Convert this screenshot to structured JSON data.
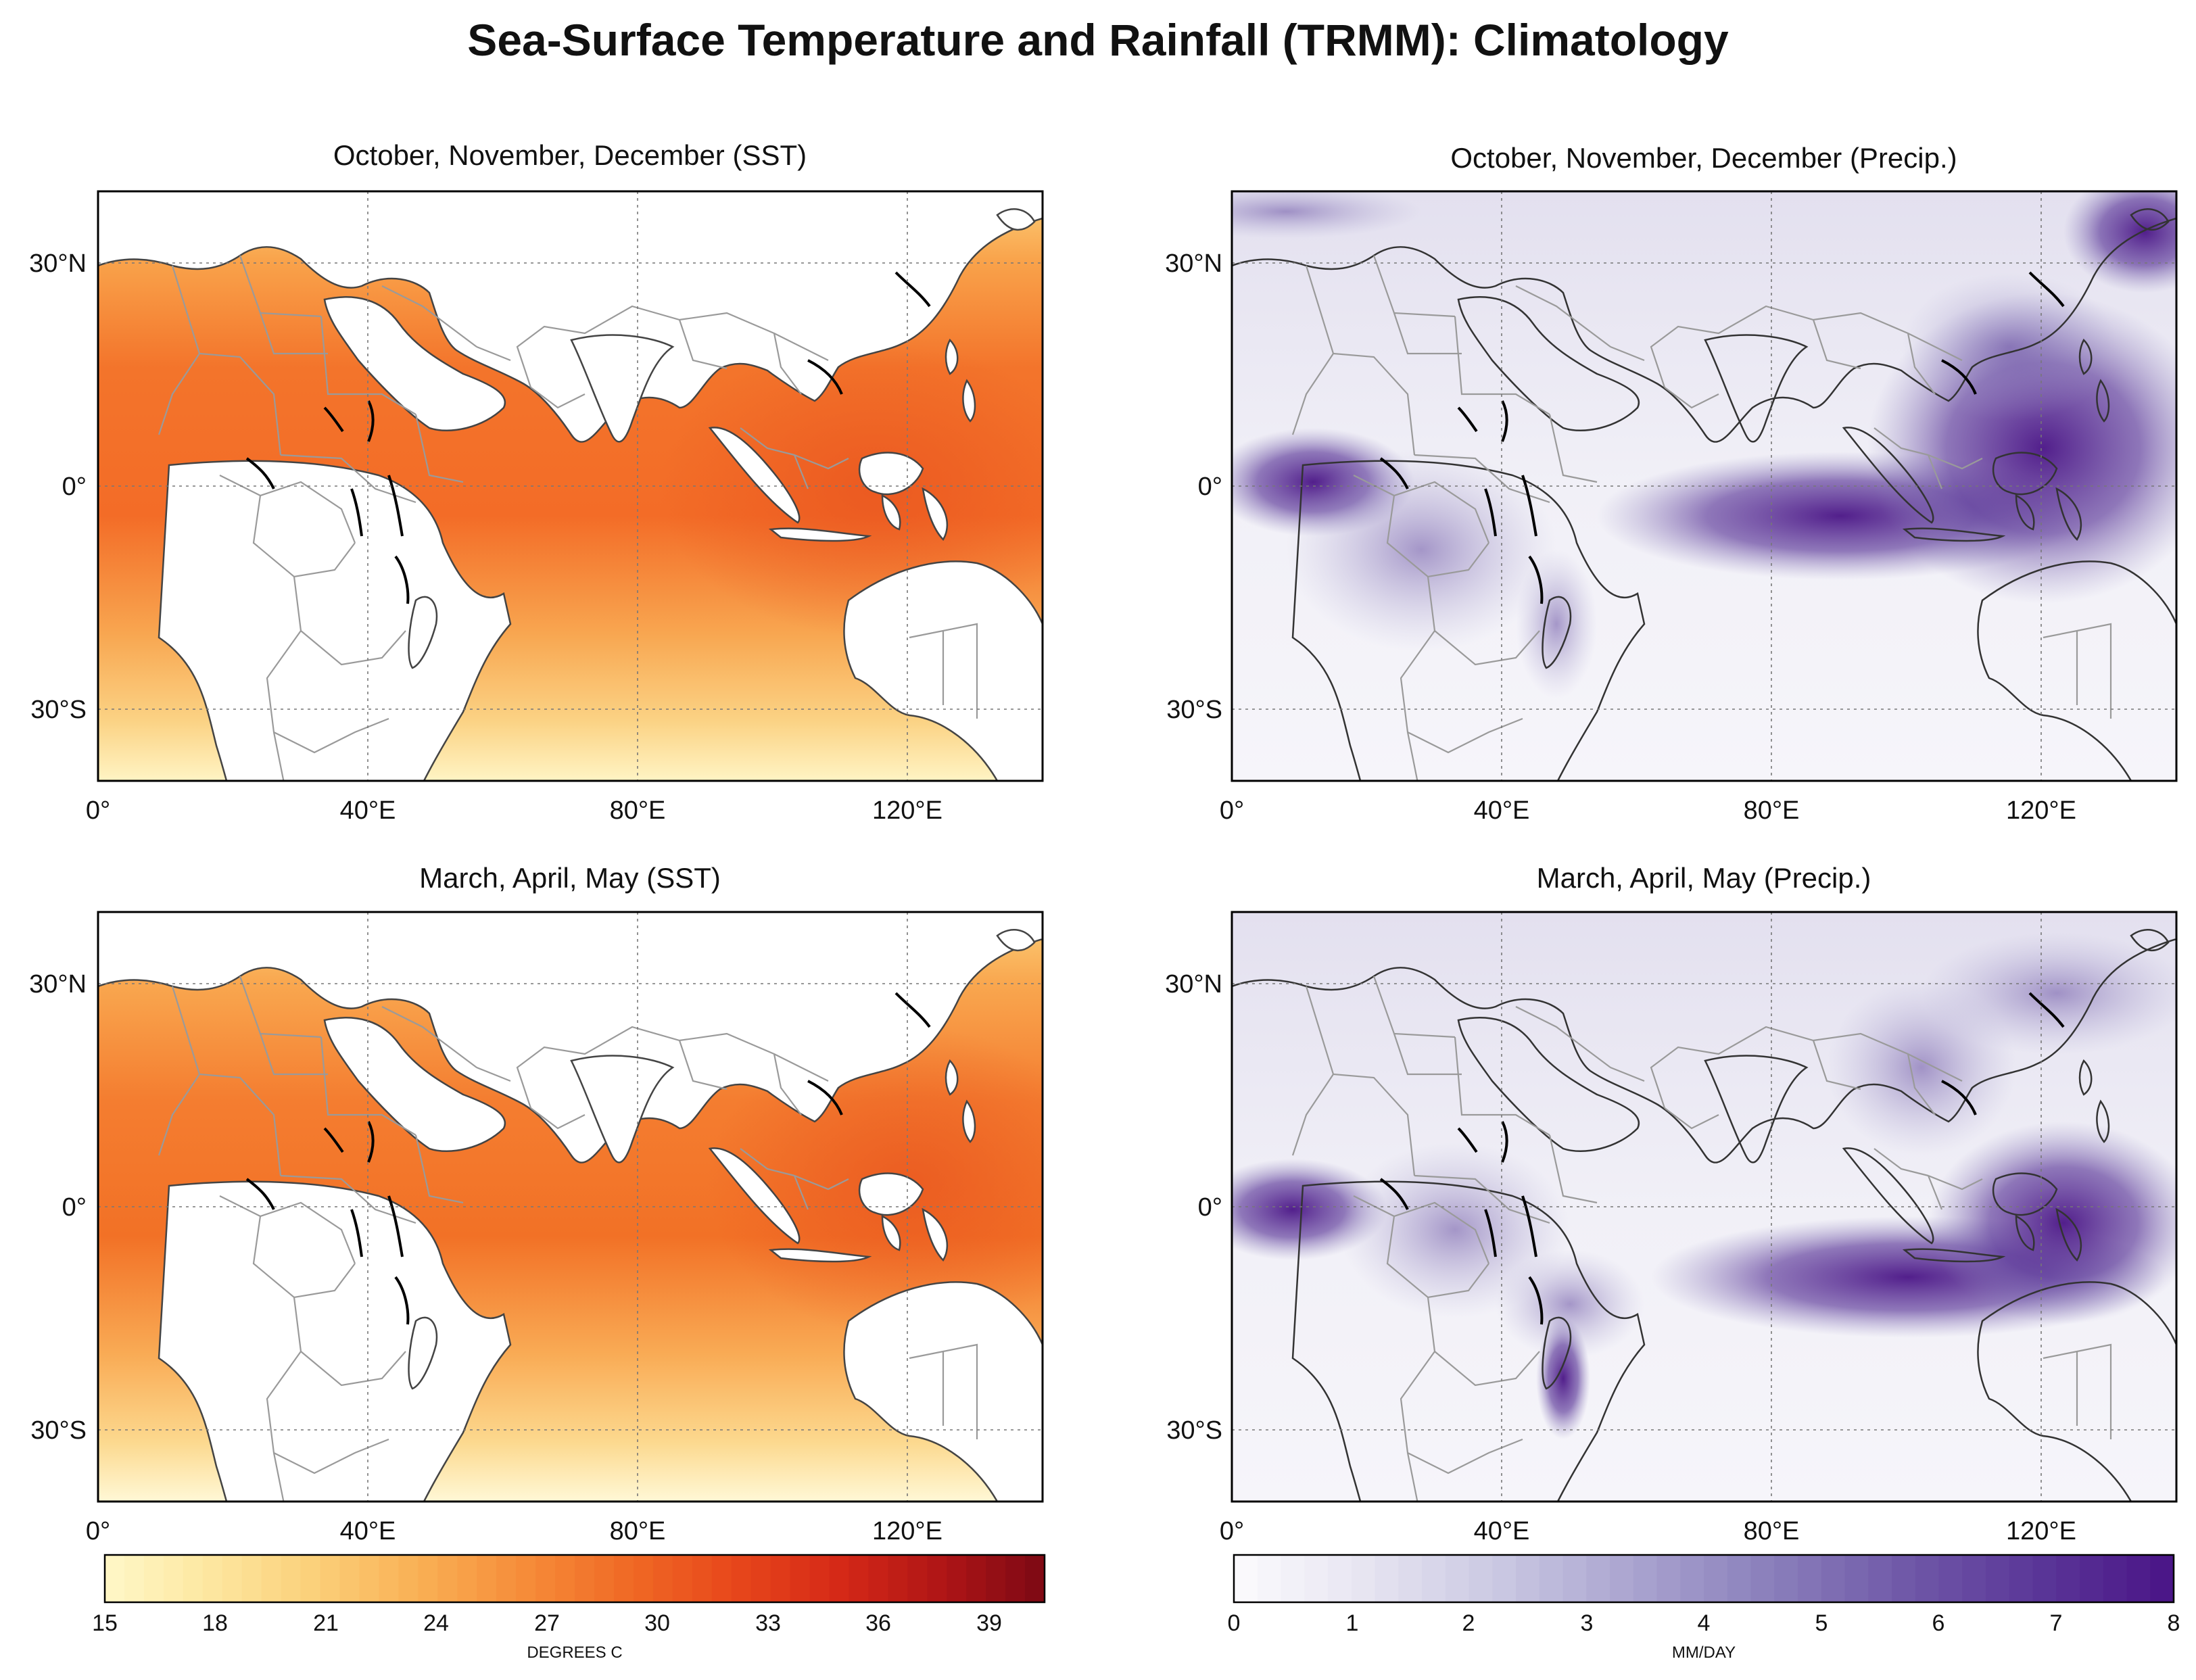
{
  "title": "Sea-Surface Temperature and Rainfall (TRMM): Climatology",
  "colors": {
    "sst_ramp": [
      "#fff8c8",
      "#fde7a0",
      "#fbd07a",
      "#f9b055",
      "#f68d3a",
      "#f06a25",
      "#e8481b",
      "#d62a17",
      "#b01516",
      "#7c0914"
    ],
    "precip_ramp": [
      "#fcfbfd",
      "#e6e4f1",
      "#c9c7e2",
      "#a9a3cf",
      "#8a7fbb",
      "#7059a8",
      "#5a3698",
      "#4a1486"
    ],
    "land": "#ffffff",
    "frame": "#000000",
    "gridline": "#777777"
  },
  "panels": [
    {
      "title": "October, November, December (SST)",
      "variable": "SST",
      "x_ticks": [
        "0°",
        "40°E",
        "80°E",
        "120°E"
      ],
      "y_ticks": [
        "30°N",
        "0°",
        "30°S"
      ]
    },
    {
      "title": "October, November, December (Precip.)",
      "variable": "Precip",
      "x_ticks": [
        "0°",
        "40°E",
        "80°E",
        "120°E"
      ],
      "y_ticks": [
        "30°N",
        "0°",
        "30°S"
      ]
    },
    {
      "title": "March, April, May (SST)",
      "variable": "SST",
      "x_ticks": [
        "0°",
        "40°E",
        "80°E",
        "120°E"
      ],
      "y_ticks": [
        "30°N",
        "0°",
        "30°S"
      ]
    },
    {
      "title": "March, April, May (Precip.)",
      "variable": "Precip",
      "x_ticks": [
        "0°",
        "40°E",
        "80°E",
        "120°E"
      ],
      "y_ticks": [
        "30°N",
        "0°",
        "30°S"
      ]
    }
  ],
  "colorbars": {
    "sst": {
      "ticks": [
        "15",
        "18",
        "21",
        "24",
        "27",
        "30",
        "33",
        "36",
        "39"
      ],
      "label": "DEGREES C"
    },
    "precip": {
      "ticks": [
        "0",
        "1",
        "2",
        "3",
        "4",
        "5",
        "6",
        "7",
        "8"
      ],
      "label": "MM/DAY"
    }
  }
}
